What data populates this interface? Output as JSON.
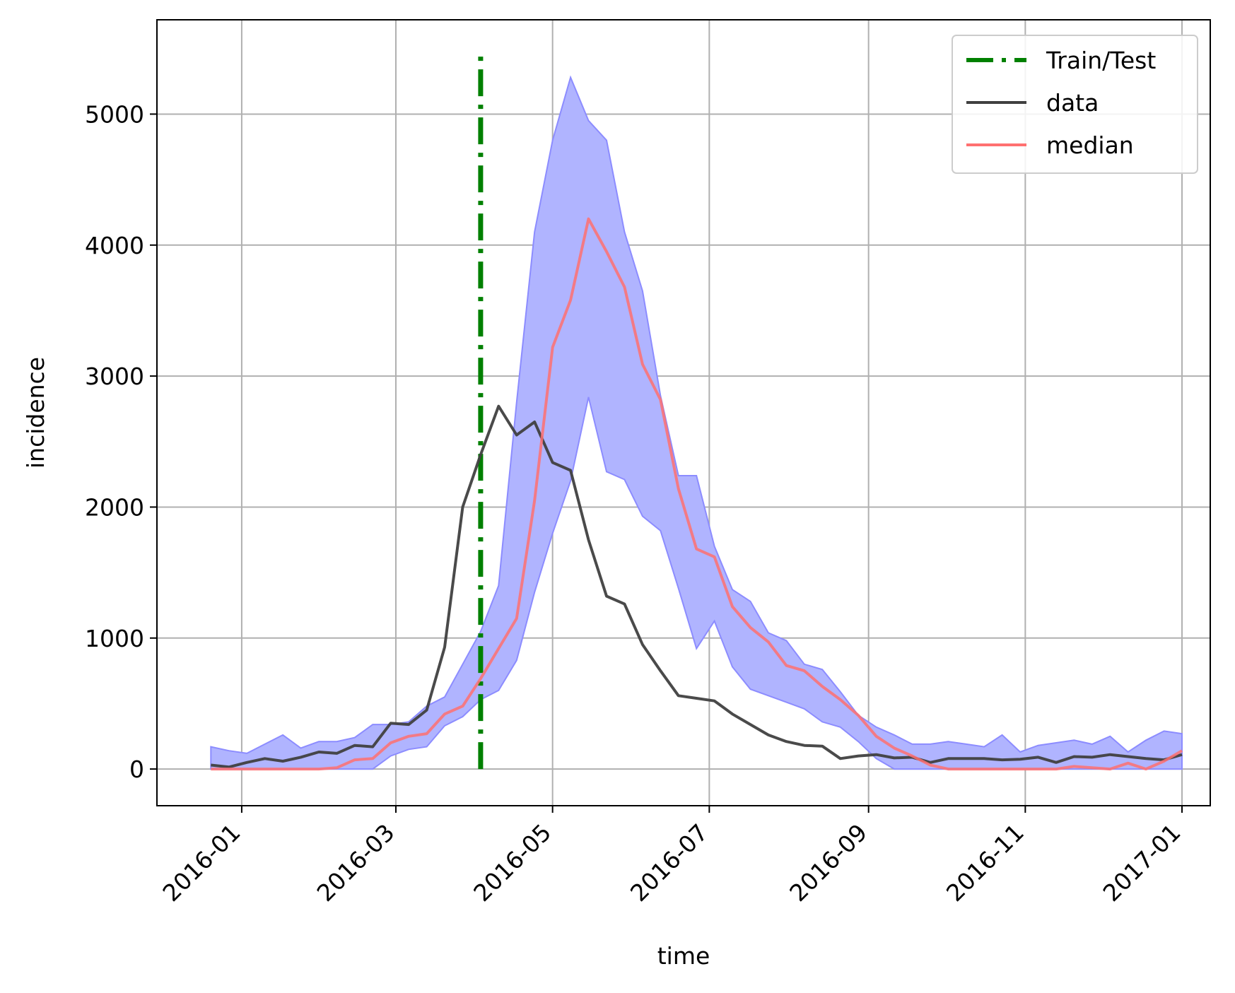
{
  "chart_data": {
    "type": "line",
    "title": "",
    "xlabel": "time",
    "ylabel": "incidence",
    "xlim": [
      "2015-11-29",
      "2017-01-12"
    ],
    "ylim": [
      -280,
      5720
    ],
    "grid": true,
    "legend_position": "top-right",
    "x_ticks": [
      "2016-01",
      "2016-03",
      "2016-05",
      "2016-07",
      "2016-09",
      "2016-11",
      "2017-01"
    ],
    "y_ticks": [
      0,
      1000,
      2000,
      3000,
      4000,
      5000
    ],
    "colors": {
      "train_test": "#008000",
      "data": "#404040",
      "median": "#ff7070",
      "band_fill": "#b0b4ff",
      "band_edge": "#8c8cff",
      "grid": "#b0b0b0"
    },
    "train_test_split": {
      "x": "2016-04-03",
      "y_range": [
        0,
        5450
      ],
      "label": "Train/Test"
    },
    "x": [
      "2015-12-20",
      "2015-12-27",
      "2016-01-03",
      "2016-01-10",
      "2016-01-17",
      "2016-01-24",
      "2016-01-31",
      "2016-02-07",
      "2016-02-14",
      "2016-02-21",
      "2016-02-28",
      "2016-03-06",
      "2016-03-13",
      "2016-03-20",
      "2016-03-27",
      "2016-04-03",
      "2016-04-10",
      "2016-04-17",
      "2016-04-24",
      "2016-05-01",
      "2016-05-08",
      "2016-05-15",
      "2016-05-22",
      "2016-05-29",
      "2016-06-05",
      "2016-06-12",
      "2016-06-19",
      "2016-06-26",
      "2016-07-03",
      "2016-07-10",
      "2016-07-17",
      "2016-07-24",
      "2016-07-31",
      "2016-08-07",
      "2016-08-14",
      "2016-08-21",
      "2016-08-28",
      "2016-09-04",
      "2016-09-11",
      "2016-09-18",
      "2016-09-25",
      "2016-10-02",
      "2016-10-09",
      "2016-10-16",
      "2016-10-23",
      "2016-10-30",
      "2016-11-06",
      "2016-11-13",
      "2016-11-20",
      "2016-11-27",
      "2016-12-04",
      "2016-12-11",
      "2016-12-18",
      "2016-12-25",
      "2017-01-01"
    ],
    "series": [
      {
        "name": "data",
        "values": [
          30,
          15,
          50,
          80,
          60,
          90,
          130,
          120,
          180,
          170,
          350,
          340,
          450,
          930,
          2000,
          2400,
          2770,
          2550,
          2650,
          2340,
          2280,
          1750,
          1320,
          1260,
          950,
          750,
          560,
          540,
          520,
          420,
          340,
          260,
          210,
          180,
          175,
          80,
          100,
          110,
          85,
          90,
          50,
          80,
          80,
          80,
          70,
          75,
          90,
          50,
          95,
          90,
          110,
          95,
          80,
          70,
          110
        ]
      },
      {
        "name": "median",
        "values": [
          0,
          0,
          0,
          0,
          0,
          0,
          0,
          10,
          70,
          80,
          200,
          250,
          270,
          420,
          480,
          690,
          920,
          1150,
          2050,
          3220,
          3580,
          4200,
          3950,
          3680,
          3090,
          2820,
          2140,
          1680,
          1620,
          1240,
          1080,
          970,
          790,
          750,
          630,
          530,
          410,
          250,
          160,
          100,
          30,
          0,
          0,
          0,
          0,
          0,
          0,
          0,
          20,
          10,
          0,
          45,
          0,
          60,
          140
        ]
      }
    ],
    "band": {
      "upper": [
        170,
        140,
        120,
        190,
        260,
        160,
        210,
        210,
        240,
        340,
        340,
        360,
        480,
        550,
        800,
        1050,
        1400,
        2800,
        4100,
        4800,
        5280,
        4950,
        4800,
        4100,
        3650,
        2850,
        2240,
        2240,
        1700,
        1370,
        1280,
        1040,
        980,
        800,
        760,
        590,
        410,
        320,
        260,
        190,
        190,
        210,
        190,
        170,
        260,
        130,
        180,
        200,
        220,
        190,
        250,
        130,
        220,
        290,
        270
      ],
      "lower": [
        0,
        0,
        0,
        0,
        0,
        0,
        0,
        0,
        0,
        0,
        100,
        150,
        170,
        330,
        400,
        530,
        600,
        830,
        1350,
        1800,
        2200,
        2840,
        2270,
        2210,
        1930,
        1820,
        1380,
        920,
        1130,
        780,
        610,
        560,
        510,
        460,
        360,
        320,
        210,
        80,
        0,
        0,
        0,
        0,
        0,
        0,
        0,
        0,
        0,
        0,
        0,
        0,
        0,
        0,
        0,
        0,
        0
      ]
    }
  }
}
